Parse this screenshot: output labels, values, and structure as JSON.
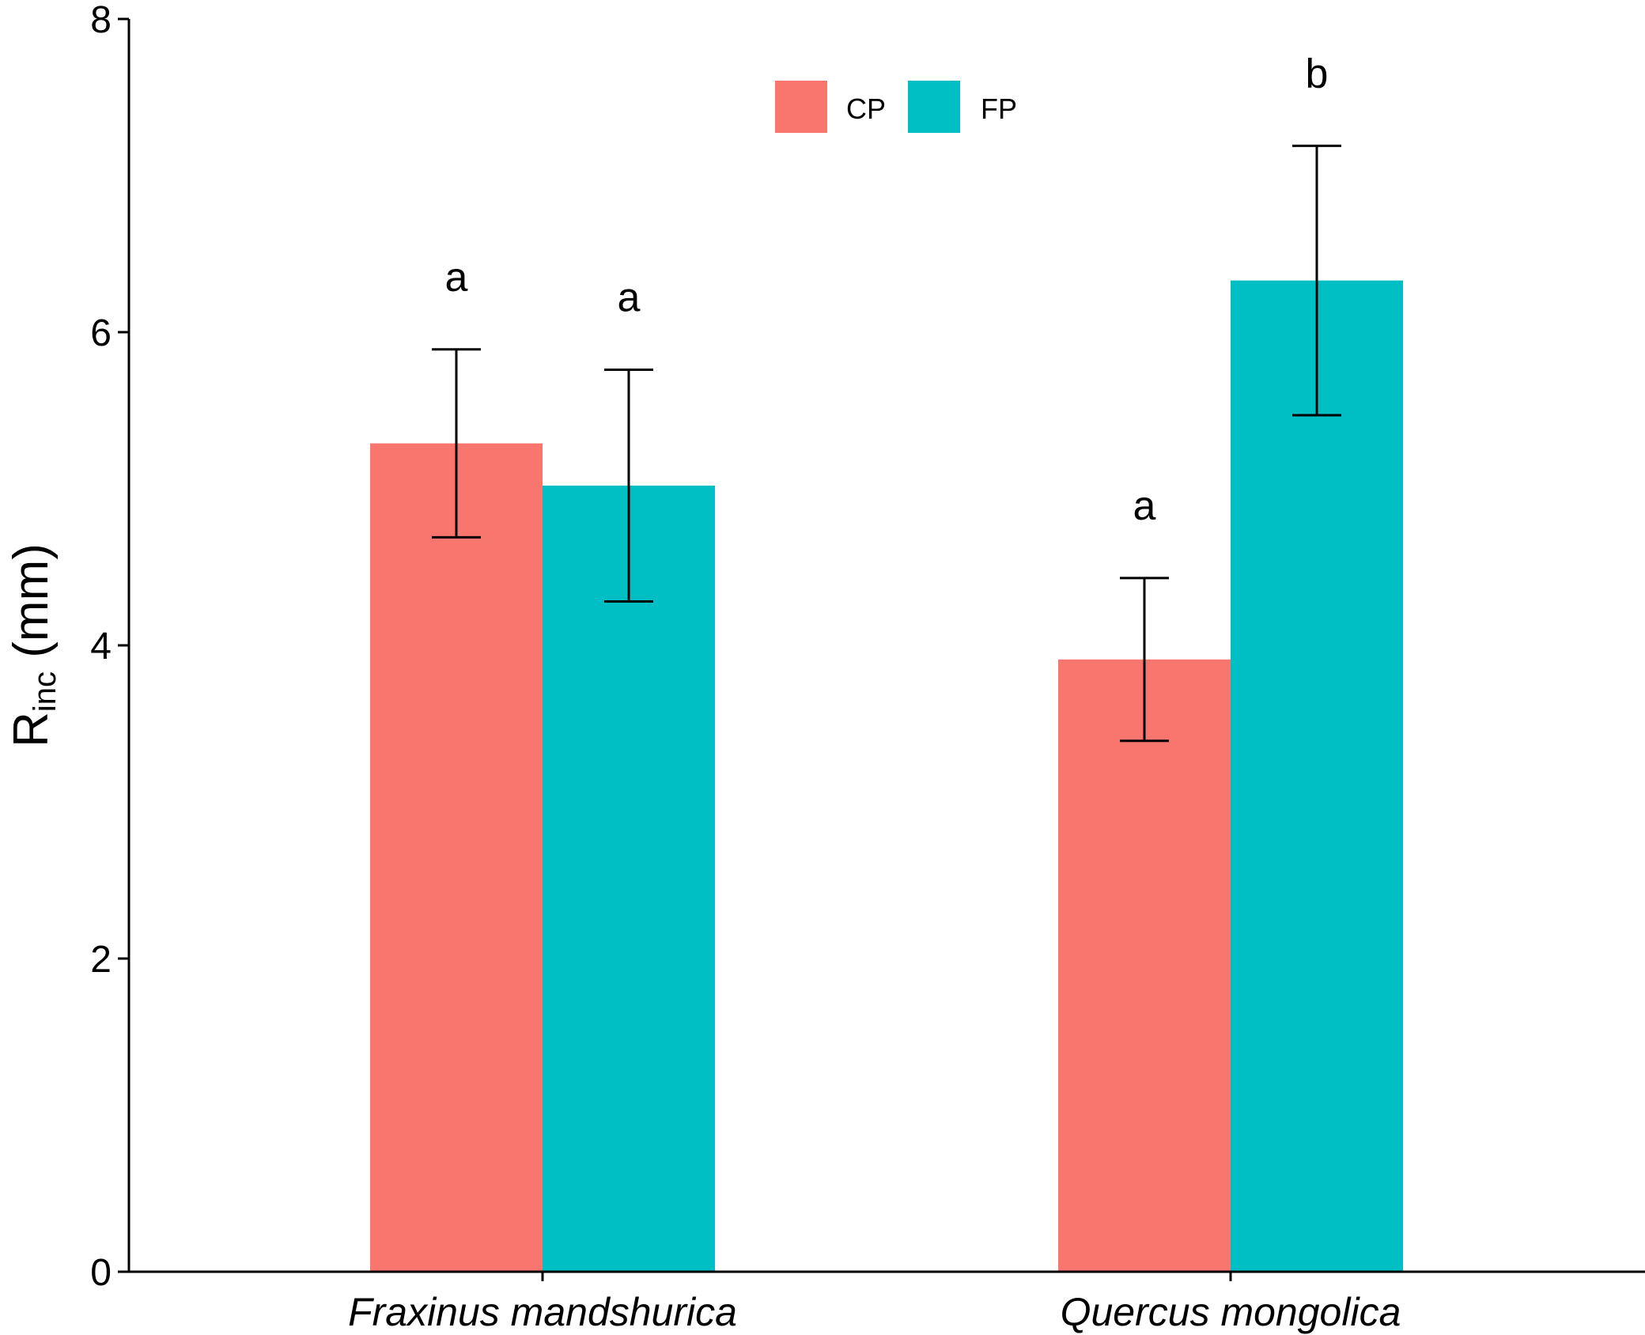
{
  "chart_data": {
    "type": "bar",
    "title": "",
    "xlabel": "",
    "ylabel": {
      "main": "R",
      "sub": "inc",
      "unit": " (mm)"
    },
    "ylim": [
      0,
      8
    ],
    "yticks": [
      "0",
      "2",
      "4",
      "6",
      "8"
    ],
    "categories": [
      "Fraxinus mandshurica",
      "Quercus mongolica"
    ],
    "series": [
      {
        "name": "CP",
        "color": "#F8766D",
        "values": [
          5.29,
          3.91
        ],
        "error": [
          0.6,
          0.52
        ],
        "labels": [
          "a",
          "a"
        ]
      },
      {
        "name": "FP",
        "color": "#00BFC4",
        "values": [
          5.02,
          6.33
        ],
        "error": [
          0.74,
          0.86
        ],
        "labels": [
          "a",
          "b"
        ]
      }
    ],
    "legend": {
      "position": "top-center",
      "entries": [
        "CP",
        "FP"
      ]
    },
    "grid": false
  }
}
